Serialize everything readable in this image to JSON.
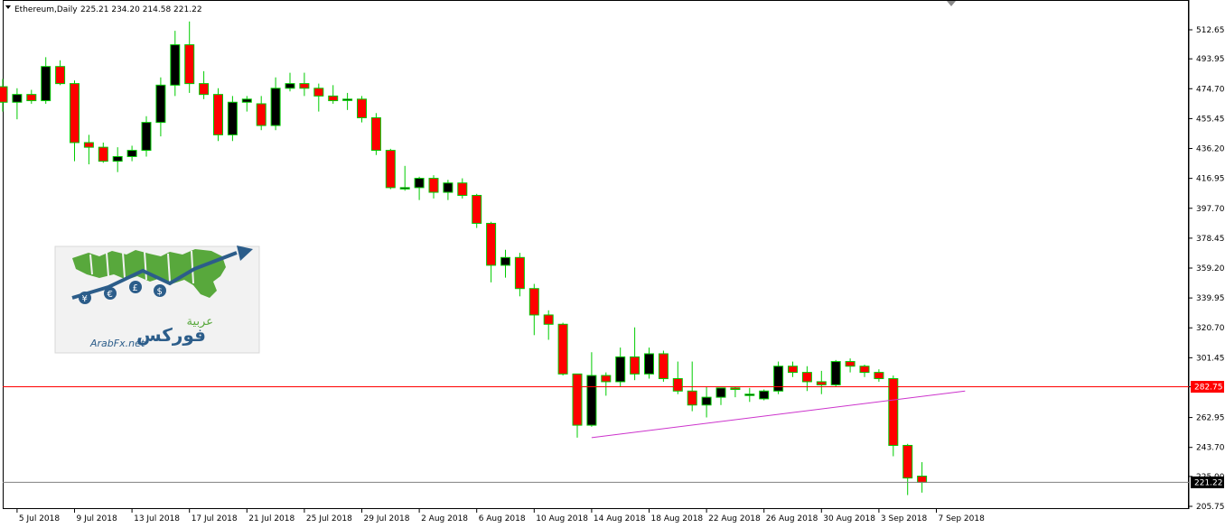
{
  "header": {
    "symbol": "Ethereum,Daily",
    "ohlc": "225.21 234.20 214.58 221.22"
  },
  "logo": {
    "arabic_top": "عربية",
    "arabic_main": "فوركس",
    "site": "ArabFx.net",
    "currency_symbols": [
      "¥",
      "€",
      "£",
      "$"
    ]
  },
  "colors": {
    "bull_body": "#000000",
    "bear_body": "#ff0000",
    "wick": "#00cc00",
    "level_line": "#ff0000",
    "trend_line": "#cc33cc",
    "bid_line": "#808080",
    "tag_bg": "#ff0000",
    "tag_text": "#ffffff",
    "bid_tag_bg": "#000000",
    "bid_tag_text": "#ffffff"
  },
  "chart_data": {
    "type": "candlestick",
    "ylim": [
      205.75,
      530
    ],
    "yticks": [
      "512.65",
      "493.95",
      "474.70",
      "455.45",
      "436.20",
      "416.95",
      "397.70",
      "378.45",
      "359.20",
      "339.95",
      "320.70",
      "301.45",
      "282.75",
      "262.95",
      "243.70",
      "225.00",
      "205.75"
    ],
    "xtick_labels": [
      "5 Jul 2018",
      "9 Jul 2018",
      "13 Jul 2018",
      "17 Jul 2018",
      "21 Jul 2018",
      "25 Jul 2018",
      "29 Jul 2018",
      "2 Aug 2018",
      "6 Aug 2018",
      "10 Aug 2018",
      "14 Aug 2018",
      "18 Aug 2018",
      "22 Aug 2018",
      "26 Aug 2018",
      "30 Aug 2018",
      "3 Sep 2018",
      "7 Sep 2018"
    ],
    "level_line": {
      "value": 282.75,
      "label": "282.75"
    },
    "bid_line": {
      "value": 221.22,
      "label": "221.22"
    },
    "trend_line": {
      "from": [
        "14 Aug 2018",
        250
      ],
      "to": [
        "9 Sep 2018",
        280
      ]
    },
    "candles": [
      {
        "date": "4 Jul 2018",
        "o": 476,
        "h": 481,
        "l": 460,
        "c": 466
      },
      {
        "date": "5 Jul 2018",
        "o": 466,
        "h": 475,
        "l": 455,
        "c": 471
      },
      {
        "date": "6 Jul 2018",
        "o": 471,
        "h": 474,
        "l": 465,
        "c": 467
      },
      {
        "date": "7 Jul 2018",
        "o": 467,
        "h": 495,
        "l": 465,
        "c": 489
      },
      {
        "date": "8 Jul 2018",
        "o": 489,
        "h": 493,
        "l": 477,
        "c": 478
      },
      {
        "date": "9 Jul 2018",
        "o": 478,
        "h": 480,
        "l": 428,
        "c": 440
      },
      {
        "date": "10 Jul 2018",
        "o": 440,
        "h": 445,
        "l": 426,
        "c": 437
      },
      {
        "date": "11 Jul 2018",
        "o": 437,
        "h": 440,
        "l": 427,
        "c": 428
      },
      {
        "date": "12 Jul 2018",
        "o": 428,
        "h": 437,
        "l": 421,
        "c": 431
      },
      {
        "date": "13 Jul 2018",
        "o": 431,
        "h": 438,
        "l": 428,
        "c": 435
      },
      {
        "date": "14 Jul 2018",
        "o": 435,
        "h": 457,
        "l": 431,
        "c": 453
      },
      {
        "date": "15 Jul 2018",
        "o": 453,
        "h": 482,
        "l": 444,
        "c": 477
      },
      {
        "date": "16 Jul 2018",
        "o": 477,
        "h": 512,
        "l": 470,
        "c": 503
      },
      {
        "date": "17 Jul 2018",
        "o": 503,
        "h": 518,
        "l": 472,
        "c": 478
      },
      {
        "date": "18 Jul 2018",
        "o": 478,
        "h": 486,
        "l": 468,
        "c": 471
      },
      {
        "date": "19 Jul 2018",
        "o": 471,
        "h": 475,
        "l": 441,
        "c": 445
      },
      {
        "date": "20 Jul 2018",
        "o": 445,
        "h": 470,
        "l": 441,
        "c": 466
      },
      {
        "date": "21 Jul 2018",
        "o": 466,
        "h": 470,
        "l": 460,
        "c": 468
      },
      {
        "date": "22 Jul 2018",
        "o": 465,
        "h": 470,
        "l": 448,
        "c": 451
      },
      {
        "date": "23 Jul 2018",
        "o": 451,
        "h": 482,
        "l": 448,
        "c": 475
      },
      {
        "date": "24 Jul 2018",
        "o": 475,
        "h": 485,
        "l": 473,
        "c": 478
      },
      {
        "date": "25 Jul 2018",
        "o": 478,
        "h": 485,
        "l": 470,
        "c": 475
      },
      {
        "date": "26 Jul 2018",
        "o": 475,
        "h": 478,
        "l": 460,
        "c": 470
      },
      {
        "date": "27 Jul 2018",
        "o": 470,
        "h": 477,
        "l": 465,
        "c": 467
      },
      {
        "date": "28 Jul 2018",
        "o": 468,
        "h": 472,
        "l": 461,
        "c": 468
      },
      {
        "date": "29 Jul 2018",
        "o": 468,
        "h": 470,
        "l": 453,
        "c": 456
      },
      {
        "date": "30 Jul 2018",
        "o": 456,
        "h": 459,
        "l": 432,
        "c": 435
      },
      {
        "date": "31 Jul 2018",
        "o": 435,
        "h": 436,
        "l": 410,
        "c": 411
      },
      {
        "date": "1 Aug 2018",
        "o": 411,
        "h": 425,
        "l": 409,
        "c": 411
      },
      {
        "date": "2 Aug 2018",
        "o": 411,
        "h": 418,
        "l": 403,
        "c": 417
      },
      {
        "date": "3 Aug 2018",
        "o": 417,
        "h": 419,
        "l": 404,
        "c": 408
      },
      {
        "date": "4 Aug 2018",
        "o": 408,
        "h": 416,
        "l": 403,
        "c": 414
      },
      {
        "date": "5 Aug 2018",
        "o": 414,
        "h": 417,
        "l": 404,
        "c": 406
      },
      {
        "date": "6 Aug 2018",
        "o": 406,
        "h": 407,
        "l": 385,
        "c": 388
      },
      {
        "date": "7 Aug 2018",
        "o": 388,
        "h": 389,
        "l": 350,
        "c": 361
      },
      {
        "date": "8 Aug 2018",
        "o": 361,
        "h": 371,
        "l": 353,
        "c": 366
      },
      {
        "date": "9 Aug 2018",
        "o": 366,
        "h": 369,
        "l": 341,
        "c": 346
      },
      {
        "date": "10 Aug 2018",
        "o": 346,
        "h": 349,
        "l": 316,
        "c": 329
      },
      {
        "date": "11 Aug 2018",
        "o": 329,
        "h": 332,
        "l": 313,
        "c": 323
      },
      {
        "date": "12 Aug 2018",
        "o": 323,
        "h": 324,
        "l": 290,
        "c": 291
      },
      {
        "date": "13 Aug 2018",
        "o": 291,
        "h": 291,
        "l": 250,
        "c": 258
      },
      {
        "date": "14 Aug 2018",
        "o": 258,
        "h": 305,
        "l": 257,
        "c": 290
      },
      {
        "date": "15 Aug 2018",
        "o": 290,
        "h": 292,
        "l": 277,
        "c": 286
      },
      {
        "date": "16 Aug 2018",
        "o": 286,
        "h": 308,
        "l": 283,
        "c": 302
      },
      {
        "date": "17 Aug 2018",
        "o": 302,
        "h": 321,
        "l": 287,
        "c": 291
      },
      {
        "date": "18 Aug 2018",
        "o": 291,
        "h": 308,
        "l": 288,
        "c": 304
      },
      {
        "date": "19 Aug 2018",
        "o": 304,
        "h": 306,
        "l": 286,
        "c": 288
      },
      {
        "date": "20 Aug 2018",
        "o": 288,
        "h": 299,
        "l": 278,
        "c": 280
      },
      {
        "date": "21 Aug 2018",
        "o": 280,
        "h": 299,
        "l": 267,
        "c": 271
      },
      {
        "date": "22 Aug 2018",
        "o": 271,
        "h": 283,
        "l": 263,
        "c": 276
      },
      {
        "date": "23 Aug 2018",
        "o": 276,
        "h": 282,
        "l": 271,
        "c": 282
      },
      {
        "date": "24 Aug 2018",
        "o": 282,
        "h": 283,
        "l": 276,
        "c": 281
      },
      {
        "date": "25 Aug 2018",
        "o": 278,
        "h": 282,
        "l": 273,
        "c": 278
      },
      {
        "date": "26 Aug 2018",
        "o": 275,
        "h": 281,
        "l": 274,
        "c": 280
      },
      {
        "date": "27 Aug 2018",
        "o": 280,
        "h": 299,
        "l": 278,
        "c": 296
      },
      {
        "date": "28 Aug 2018",
        "o": 296,
        "h": 299,
        "l": 289,
        "c": 292
      },
      {
        "date": "29 Aug 2018",
        "o": 292,
        "h": 296,
        "l": 280,
        "c": 286
      },
      {
        "date": "30 Aug 2018",
        "o": 286,
        "h": 293,
        "l": 278,
        "c": 284
      },
      {
        "date": "31 Aug 2018",
        "o": 284,
        "h": 300,
        "l": 283,
        "c": 299
      },
      {
        "date": "1 Sep 2018",
        "o": 299,
        "h": 301,
        "l": 292,
        "c": 296
      },
      {
        "date": "2 Sep 2018",
        "o": 296,
        "h": 297,
        "l": 289,
        "c": 292
      },
      {
        "date": "3 Sep 2018",
        "o": 292,
        "h": 294,
        "l": 286,
        "c": 288
      },
      {
        "date": "4 Sep 2018",
        "o": 288,
        "h": 290,
        "l": 238,
        "c": 245
      },
      {
        "date": "5 Sep 2018",
        "o": 245,
        "h": 246,
        "l": 213,
        "c": 224
      },
      {
        "date": "6 Sep 2018",
        "o": 225.21,
        "h": 234.2,
        "l": 214.58,
        "c": 221.22
      }
    ]
  }
}
